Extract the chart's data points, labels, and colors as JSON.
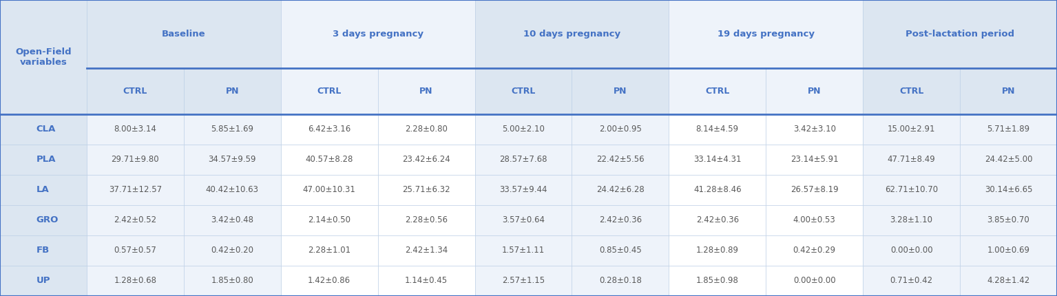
{
  "col_groups": [
    {
      "label": "Baseline",
      "span": 2
    },
    {
      "label": "3 days pregnancy",
      "span": 2
    },
    {
      "label": "10 days pregnancy",
      "span": 2
    },
    {
      "label": "19 days pregnancy",
      "span": 2
    },
    {
      "label": "Post-lactation period",
      "span": 2
    }
  ],
  "sub_headers": [
    "CTRL",
    "PN",
    "CTRL",
    "PN",
    "CTRL",
    "PN",
    "CTRL",
    "PN",
    "CTRL",
    "PN"
  ],
  "row_labels": [
    "CLA",
    "PLA",
    "LA",
    "GRO",
    "FB",
    "UP"
  ],
  "data": [
    [
      "8.00±3.14",
      "5.85±1.69",
      "6.42±3.16",
      "2.28±0.80",
      "5.00±2.10",
      "2.00±0.95",
      "8.14±4.59",
      "3.42±3.10",
      "15.00±2.91",
      "5.71±1.89"
    ],
    [
      "29.71±9.80",
      "34.57±9.59",
      "40.57±8.28",
      "23.42±6.24",
      "28.57±7.68",
      "22.42±5.56",
      "33.14±4.31",
      "23.14±5.91",
      "47.71±8.49",
      "24.42±5.00"
    ],
    [
      "37.71±12.57",
      "40.42±10.63",
      "47.00±10.31",
      "25.71±6.32",
      "33.57±9.44",
      "24.42±6.28",
      "41.28±8.46",
      "26.57±8.19",
      "62.71±10.70",
      "30.14±6.65"
    ],
    [
      "2.42±0.52",
      "3.42±0.48",
      "2.14±0.50",
      "2.28±0.56",
      "3.57±0.64",
      "2.42±0.36",
      "2.42±0.36",
      "4.00±0.53",
      "3.28±1.10",
      "3.85±0.70"
    ],
    [
      "0.57±0.57",
      "0.42±0.20",
      "2.28±1.01",
      "2.42±1.34",
      "1.57±1.11",
      "0.85±0.45",
      "1.28±0.89",
      "0.42±0.29",
      "0.00±0.00",
      "1.00±0.69"
    ],
    [
      "1.28±0.68",
      "1.85±0.80",
      "1.42±0.86",
      "1.14±0.45",
      "2.57±1.15",
      "0.28±0.18",
      "1.85±0.98",
      "0.00±0.00",
      "0.71±0.42",
      "4.28±1.42"
    ]
  ],
  "header_bg": "#dce6f1",
  "subheader_bg": "#dce6f1",
  "row_label_bg": "#dce6f1",
  "data_bg": "#ffffff",
  "alt_group_bg": "#eef3fa",
  "header_text_color": "#4472c4",
  "row_label_color": "#4472c4",
  "data_text_color": "#595959",
  "grid_color": "#b8cce4",
  "thick_line_color": "#4472c4",
  "outer_border_color": "#4472c4",
  "top_left_label_line1": "Open-Field",
  "top_left_label_line2": "variables",
  "header_fontsize": 9.5,
  "subheader_fontsize": 9,
  "row_label_fontsize": 9.5,
  "data_fontsize": 8.5
}
